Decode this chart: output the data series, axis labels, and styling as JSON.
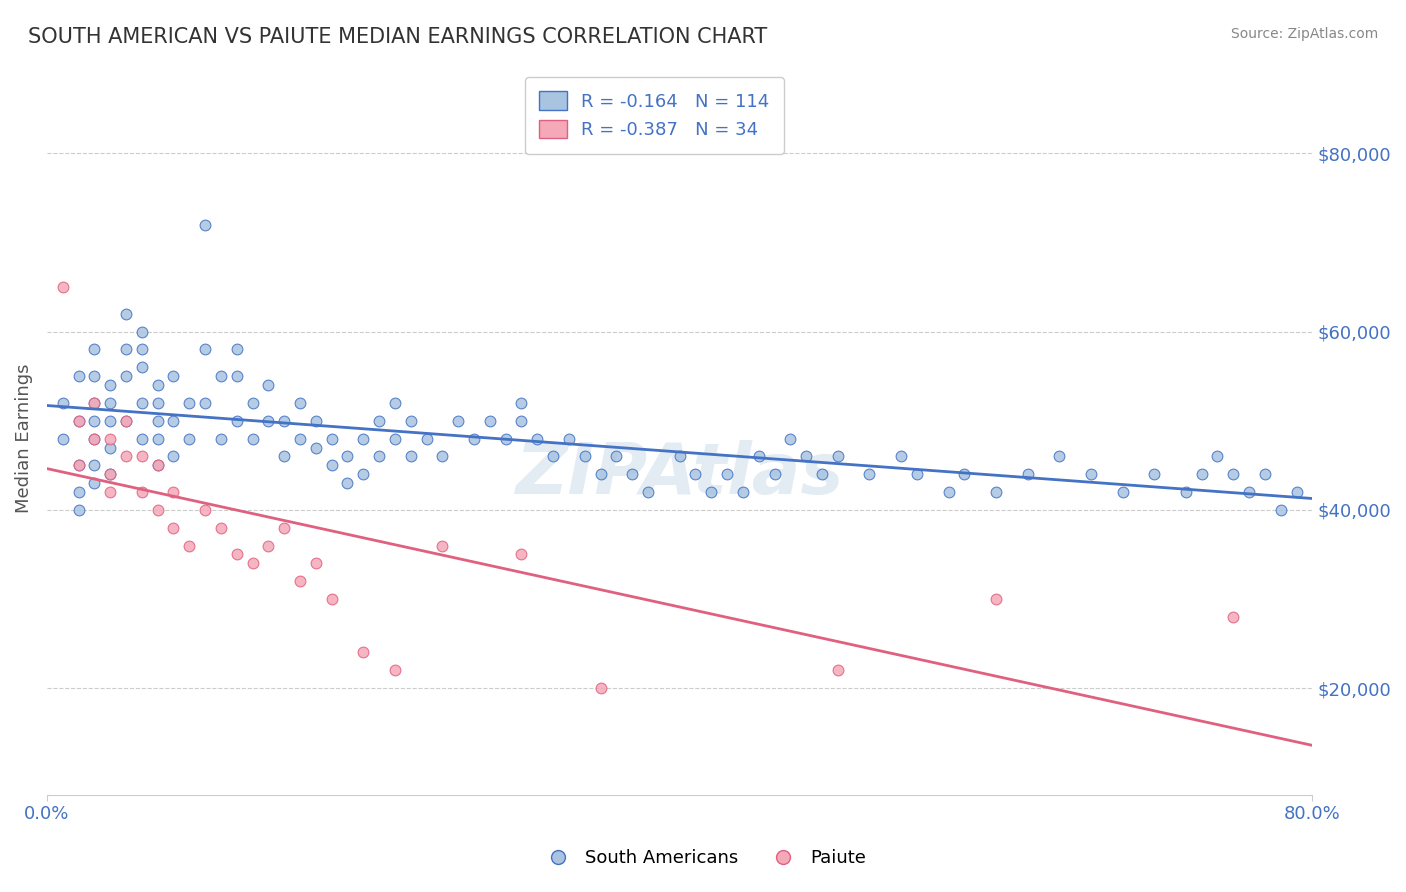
{
  "title": "SOUTH AMERICAN VS PAIUTE MEDIAN EARNINGS CORRELATION CHART",
  "source": "Source: ZipAtlas.com",
  "xlabel": "",
  "ylabel": "Median Earnings",
  "xmin": 0.0,
  "xmax": 0.8,
  "ymin": 8000,
  "ymax": 88000,
  "yticks": [
    20000,
    40000,
    60000,
    80000
  ],
  "ytick_labels": [
    "$20,000",
    "$40,000",
    "$60,000",
    "$80,000"
  ],
  "xticks": [
    0.0,
    0.1,
    0.2,
    0.3,
    0.4,
    0.5,
    0.6,
    0.7,
    0.8
  ],
  "xtick_labels": [
    "0.0%",
    "",
    "",
    "",
    "",
    "",
    "",
    "",
    "80.0%"
  ],
  "blue_R": -0.164,
  "blue_N": 114,
  "pink_R": -0.387,
  "pink_N": 34,
  "blue_color": "#a8c4e0",
  "pink_color": "#f4a8b8",
  "blue_line_color": "#4472c4",
  "pink_line_color": "#e06080",
  "blue_label": "South Americans",
  "pink_label": "Paiute",
  "watermark": "ZIPAtlas",
  "title_color": "#333333",
  "axis_label_color": "#555555",
  "tick_color": "#4472c4",
  "background_color": "#ffffff",
  "blue_scatter_x": [
    0.01,
    0.01,
    0.02,
    0.02,
    0.02,
    0.02,
    0.02,
    0.03,
    0.03,
    0.03,
    0.03,
    0.03,
    0.03,
    0.03,
    0.04,
    0.04,
    0.04,
    0.04,
    0.04,
    0.05,
    0.05,
    0.05,
    0.05,
    0.06,
    0.06,
    0.06,
    0.06,
    0.06,
    0.07,
    0.07,
    0.07,
    0.07,
    0.07,
    0.08,
    0.08,
    0.08,
    0.09,
    0.09,
    0.1,
    0.1,
    0.1,
    0.11,
    0.11,
    0.12,
    0.12,
    0.12,
    0.13,
    0.13,
    0.14,
    0.14,
    0.15,
    0.15,
    0.16,
    0.16,
    0.17,
    0.17,
    0.18,
    0.18,
    0.19,
    0.19,
    0.2,
    0.2,
    0.21,
    0.21,
    0.22,
    0.22,
    0.23,
    0.23,
    0.24,
    0.25,
    0.26,
    0.27,
    0.28,
    0.29,
    0.3,
    0.3,
    0.31,
    0.32,
    0.33,
    0.34,
    0.35,
    0.36,
    0.37,
    0.38,
    0.4,
    0.41,
    0.42,
    0.43,
    0.44,
    0.45,
    0.46,
    0.47,
    0.48,
    0.49,
    0.5,
    0.52,
    0.54,
    0.55,
    0.57,
    0.58,
    0.6,
    0.62,
    0.64,
    0.66,
    0.68,
    0.7,
    0.72,
    0.73,
    0.74,
    0.75,
    0.76,
    0.77,
    0.78,
    0.79
  ],
  "blue_scatter_y": [
    48000,
    52000,
    55000,
    50000,
    45000,
    42000,
    40000,
    58000,
    55000,
    52000,
    50000,
    48000,
    45000,
    43000,
    54000,
    52000,
    50000,
    47000,
    44000,
    62000,
    58000,
    55000,
    50000,
    60000,
    58000,
    56000,
    52000,
    48000,
    54000,
    52000,
    50000,
    48000,
    45000,
    55000,
    50000,
    46000,
    52000,
    48000,
    72000,
    58000,
    52000,
    55000,
    48000,
    58000,
    55000,
    50000,
    52000,
    48000,
    54000,
    50000,
    50000,
    46000,
    52000,
    48000,
    50000,
    47000,
    48000,
    45000,
    46000,
    43000,
    48000,
    44000,
    50000,
    46000,
    52000,
    48000,
    50000,
    46000,
    48000,
    46000,
    50000,
    48000,
    50000,
    48000,
    52000,
    50000,
    48000,
    46000,
    48000,
    46000,
    44000,
    46000,
    44000,
    42000,
    46000,
    44000,
    42000,
    44000,
    42000,
    46000,
    44000,
    48000,
    46000,
    44000,
    46000,
    44000,
    46000,
    44000,
    42000,
    44000,
    42000,
    44000,
    46000,
    44000,
    42000,
    44000,
    42000,
    44000,
    46000,
    44000,
    42000,
    44000,
    40000,
    42000
  ],
  "pink_scatter_x": [
    0.01,
    0.02,
    0.02,
    0.03,
    0.03,
    0.04,
    0.04,
    0.04,
    0.05,
    0.05,
    0.06,
    0.06,
    0.07,
    0.07,
    0.08,
    0.08,
    0.09,
    0.1,
    0.11,
    0.12,
    0.13,
    0.14,
    0.15,
    0.16,
    0.17,
    0.18,
    0.2,
    0.22,
    0.25,
    0.3,
    0.35,
    0.5,
    0.6,
    0.75
  ],
  "pink_scatter_y": [
    65000,
    50000,
    45000,
    52000,
    48000,
    48000,
    44000,
    42000,
    50000,
    46000,
    46000,
    42000,
    45000,
    40000,
    42000,
    38000,
    36000,
    40000,
    38000,
    35000,
    34000,
    36000,
    38000,
    32000,
    34000,
    30000,
    24000,
    22000,
    36000,
    35000,
    20000,
    22000,
    30000,
    28000
  ]
}
